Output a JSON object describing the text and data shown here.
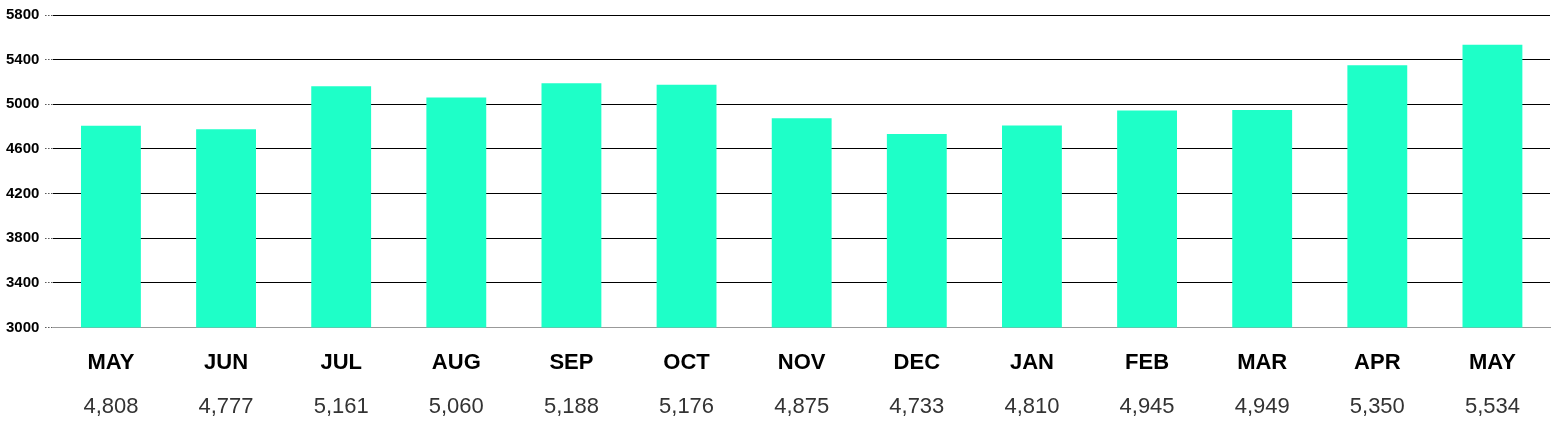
{
  "chart_data": {
    "type": "bar",
    "categories": [
      "MAY",
      "JUN",
      "JUL",
      "AUG",
      "SEP",
      "OCT",
      "NOV",
      "DEC",
      "JAN",
      "FEB",
      "MAR",
      "APR",
      "MAY"
    ],
    "values": [
      4808,
      4777,
      5161,
      5060,
      5188,
      5176,
      4875,
      4733,
      4810,
      4945,
      4949,
      5350,
      5534
    ],
    "value_labels": [
      "4,808",
      "4,777",
      "5,161",
      "5,060",
      "5,188",
      "5,176",
      "4,875",
      "4,733",
      "4,810",
      "4,945",
      "4,949",
      "5,350",
      "5,534"
    ],
    "color": "#1effc8",
    "ylim": [
      3000,
      5800
    ],
    "yticks": [
      3000,
      3400,
      3800,
      4200,
      4600,
      5000,
      5400,
      5800
    ],
    "grid": "y",
    "legend": false
  }
}
